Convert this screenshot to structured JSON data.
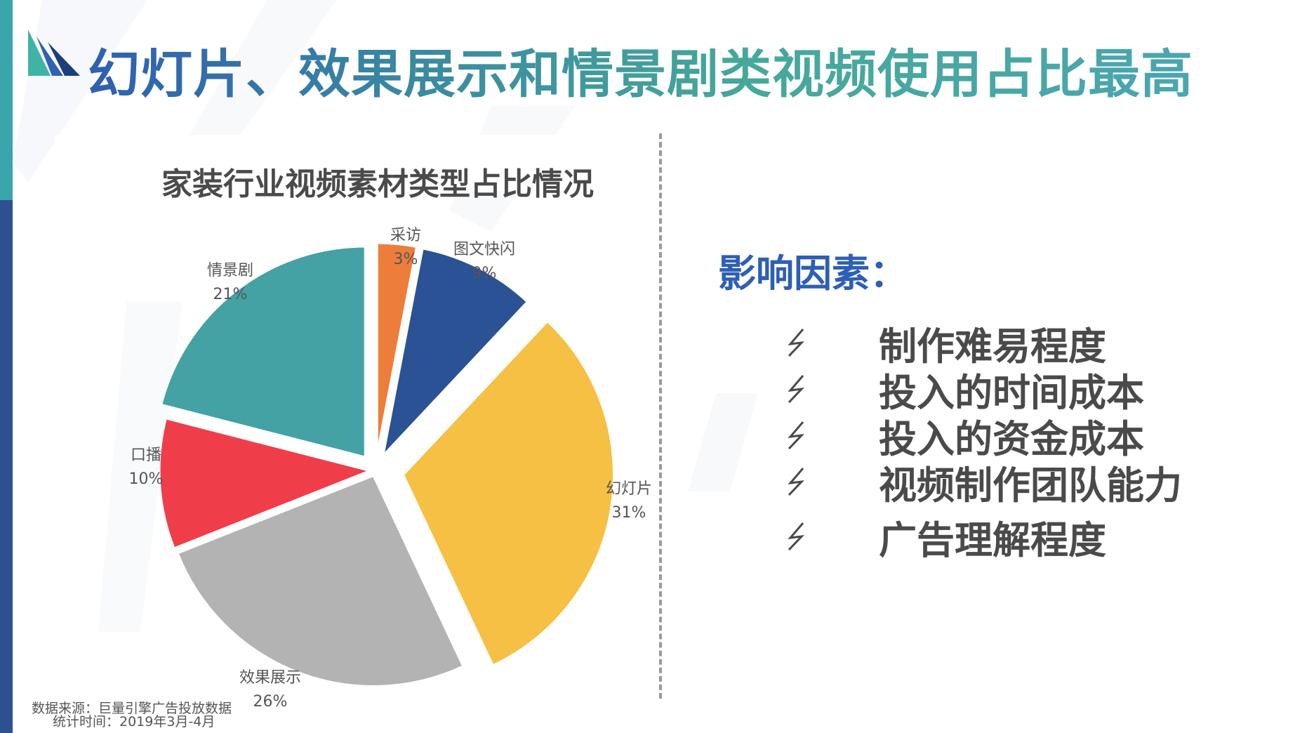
{
  "title": "幻灯片、效果展示和情景剧类视频使用占比最高",
  "chart_data": {
    "type": "pie",
    "title": "家装行业视频素材类型占比情况",
    "slices": [
      {
        "label": "采访",
        "value": 3,
        "pct": "3%",
        "color": "#ed7d3a"
      },
      {
        "label": "图文快闪",
        "value": 9,
        "pct": "9%",
        "color": "#2a5294"
      },
      {
        "label": "幻灯片",
        "value": 31,
        "pct": "31%",
        "color": "#f5c043"
      },
      {
        "label": "效果展示",
        "value": 26,
        "pct": "26%",
        "color": "#b3b3b3"
      },
      {
        "label": "口播",
        "value": 10,
        "pct": "10%",
        "color": "#ef3e4a"
      },
      {
        "label": "情景剧",
        "value": 21,
        "pct": "21%",
        "color": "#44a2a4"
      }
    ],
    "exploded": true,
    "legend": "none"
  },
  "factors": {
    "heading": "影响因素：",
    "icon": "lightning-bolt-icon",
    "items": [
      "制作难易程度",
      "投入的时间成本",
      "投入的资金成本",
      "视频制作团队能力",
      "广告理解程度"
    ]
  },
  "source": {
    "line1": "数据来源：巨量引擎广告投放数据",
    "line2": "统计时间：2019年3月-4月"
  },
  "colors": {
    "accent_teal": "#3aa5ac",
    "accent_blue": "#2c5092",
    "heading_blue": "#2d5fb5",
    "text_dark": "#4a4a4a"
  }
}
